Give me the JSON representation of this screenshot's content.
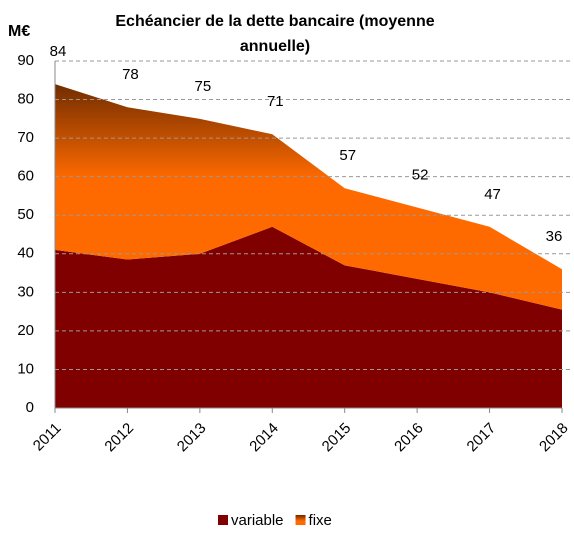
{
  "chart_data": {
    "type": "stacked_area",
    "title": [
      "Echéancier de la dette bancaire (moyenne",
      "annuelle)"
    ],
    "y_label": "M€",
    "categories": [
      "2011",
      "2012",
      "2013",
      "2014",
      "2015",
      "2016",
      "2017",
      "2018"
    ],
    "series": [
      {
        "name": "variable",
        "color": "#800000",
        "values": [
          41,
          38.5,
          40,
          47,
          37,
          33.5,
          30,
          25.5
        ]
      },
      {
        "name": "fixe",
        "color": "#ff6a00",
        "values": [
          43,
          39.5,
          35,
          24,
          20,
          18.5,
          17,
          10.5
        ]
      }
    ],
    "data_labels": [
      84,
      78,
      75,
      71,
      57,
      52,
      47,
      36
    ],
    "ylim": [
      0,
      90
    ],
    "yticks": [
      0,
      10,
      20,
      30,
      40,
      50,
      60,
      70,
      80,
      90
    ],
    "grid": true,
    "legend": "bottom"
  }
}
